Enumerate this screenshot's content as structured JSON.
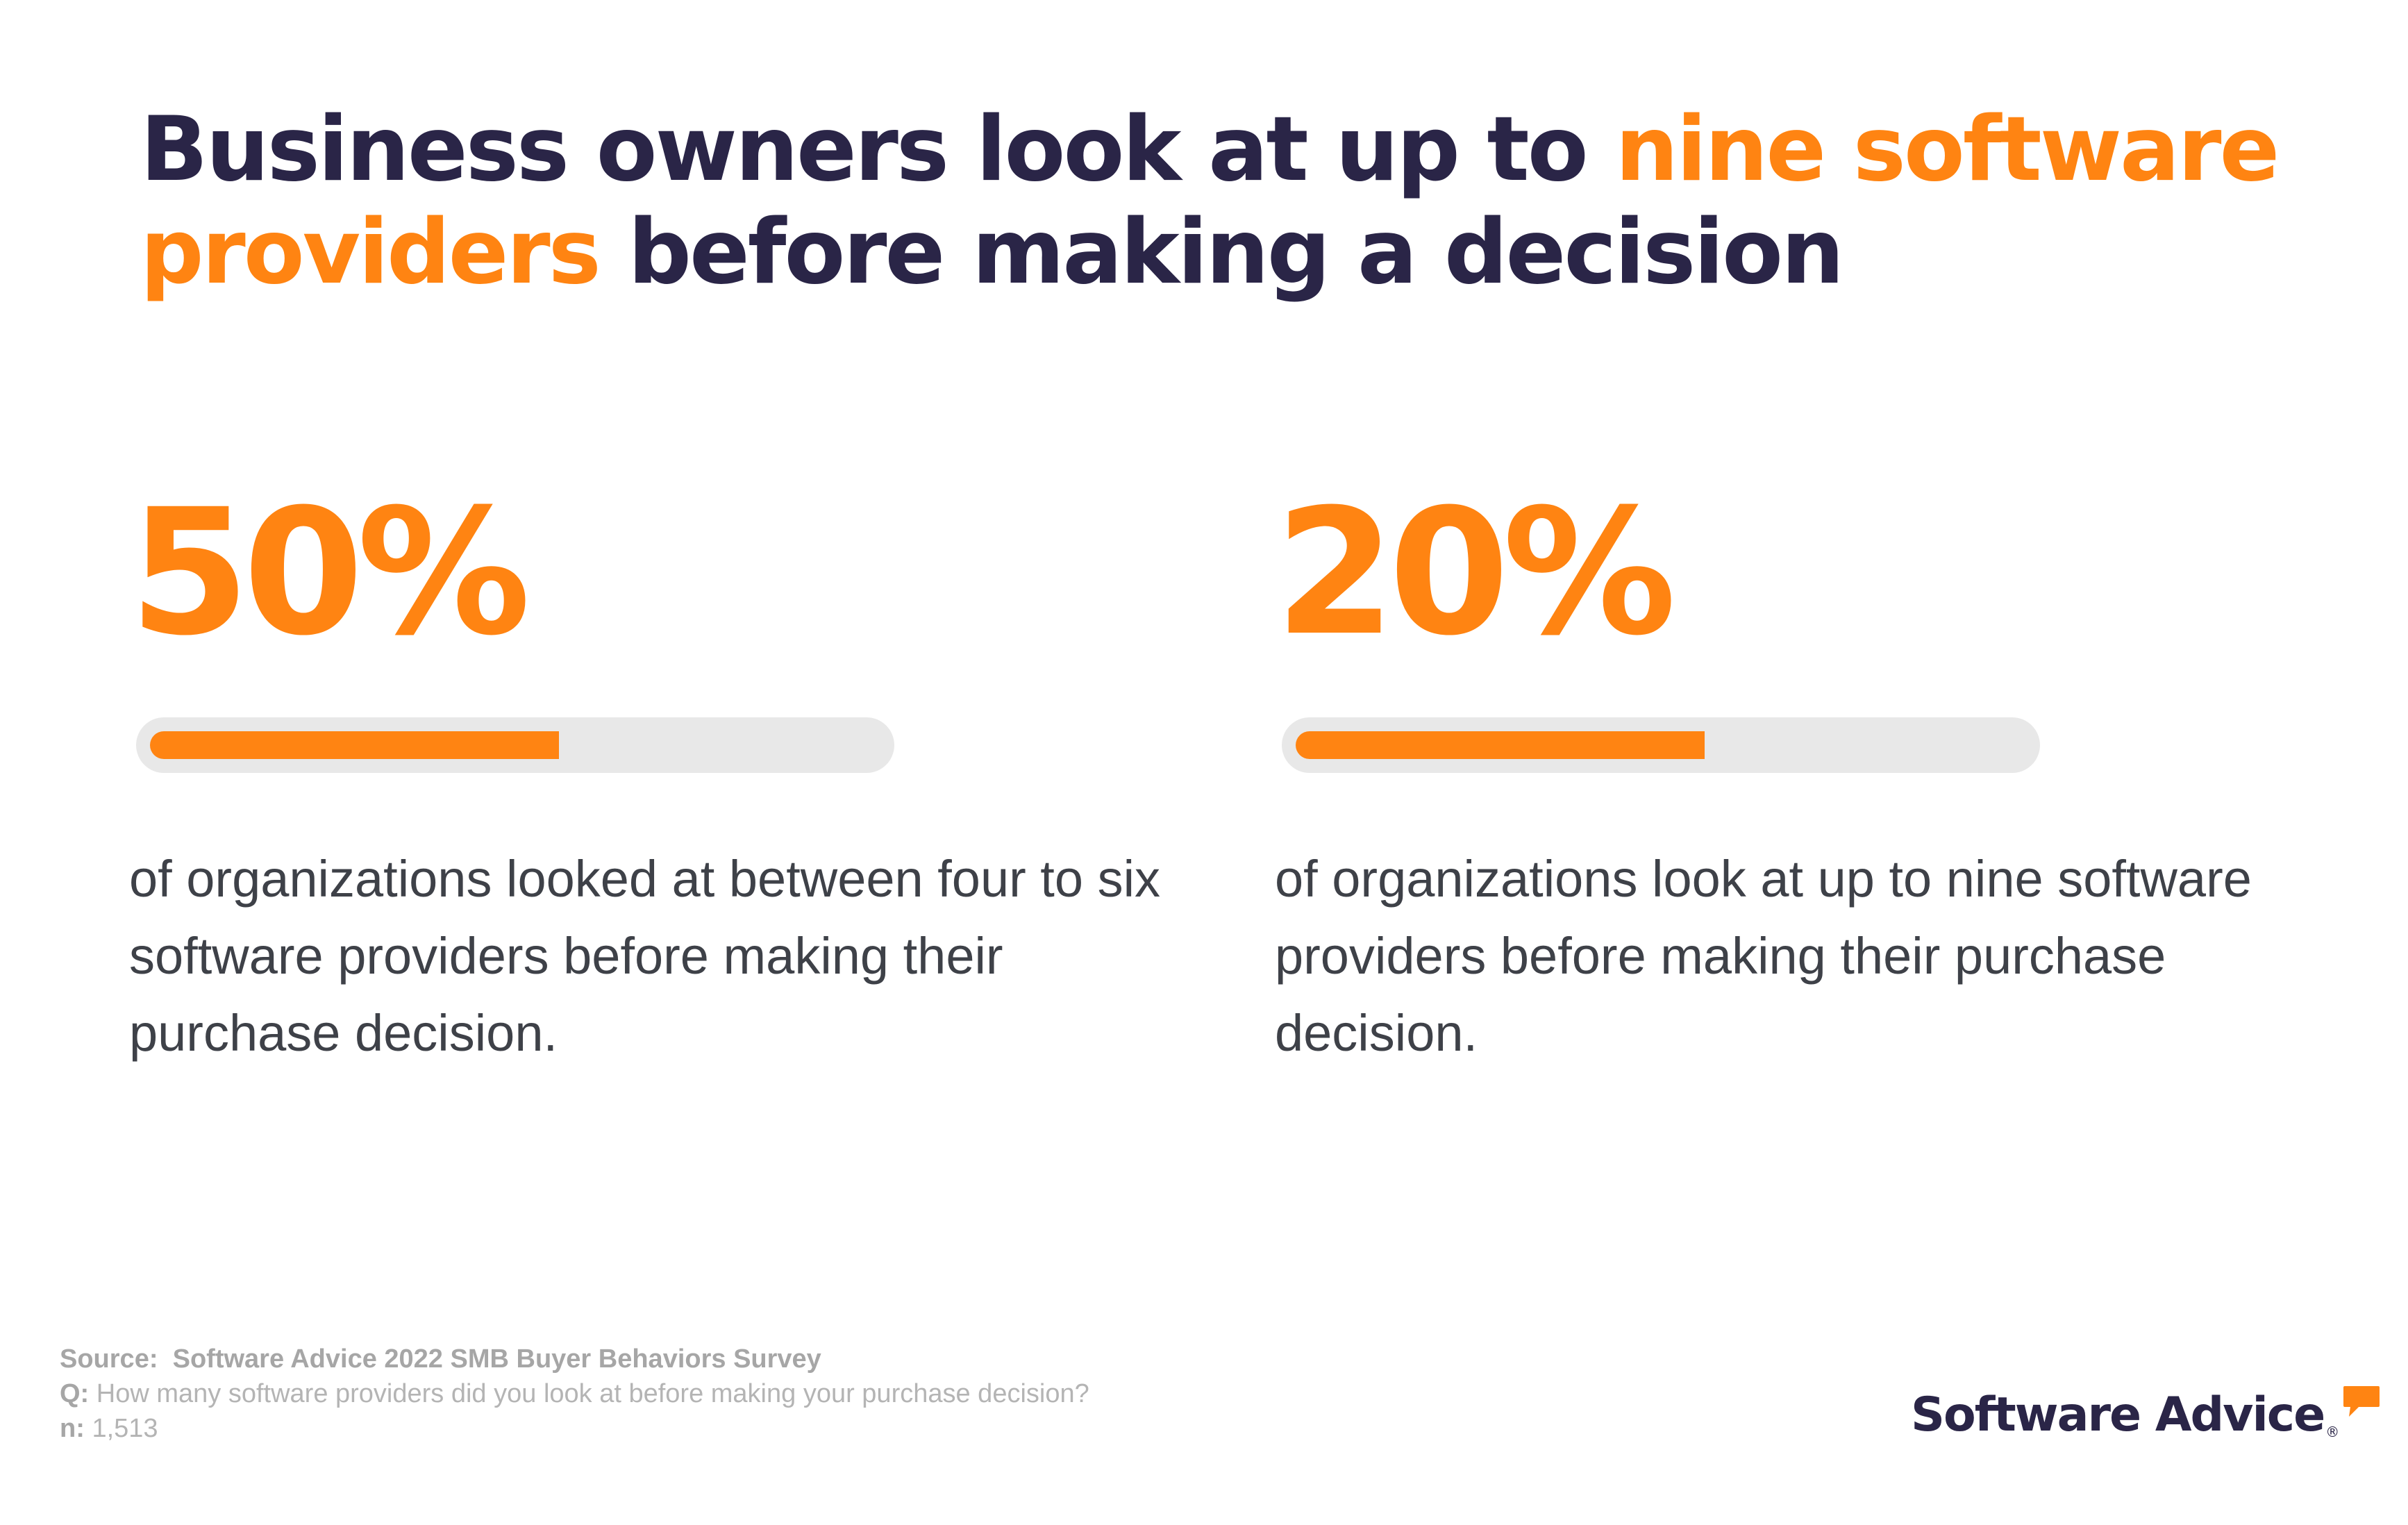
{
  "headline": {
    "part1": "Business owners look at up to ",
    "accent": "nine software providers",
    "part2": " before making a decision"
  },
  "stats": [
    {
      "value": "50%",
      "bar_fill_fraction": 0.56,
      "description": "of organizations looked at between four to six software providers before making their purchase decision."
    },
    {
      "value": "20%",
      "bar_fill_fraction": 0.56,
      "description": "of organizations look at up to nine software providers before making their purchase decision."
    }
  ],
  "footer": {
    "source_label": "Source:",
    "source_value": "Software Advice 2022 SMB Buyer Behaviors Survey",
    "question_label": "Q:",
    "question_value": "How many software providers did you look at before making your purchase decision?",
    "n_label": "n:",
    "n_value": "1,513"
  },
  "logo": {
    "text": "Software Advice",
    "registered_mark": "®",
    "icon": "speech-bubble-icon"
  },
  "colors": {
    "accent": "#ff8412",
    "navy": "#2a2547",
    "track": "#e8e8e8",
    "body_text": "#3e4148",
    "muted": "#b4b4b4"
  }
}
